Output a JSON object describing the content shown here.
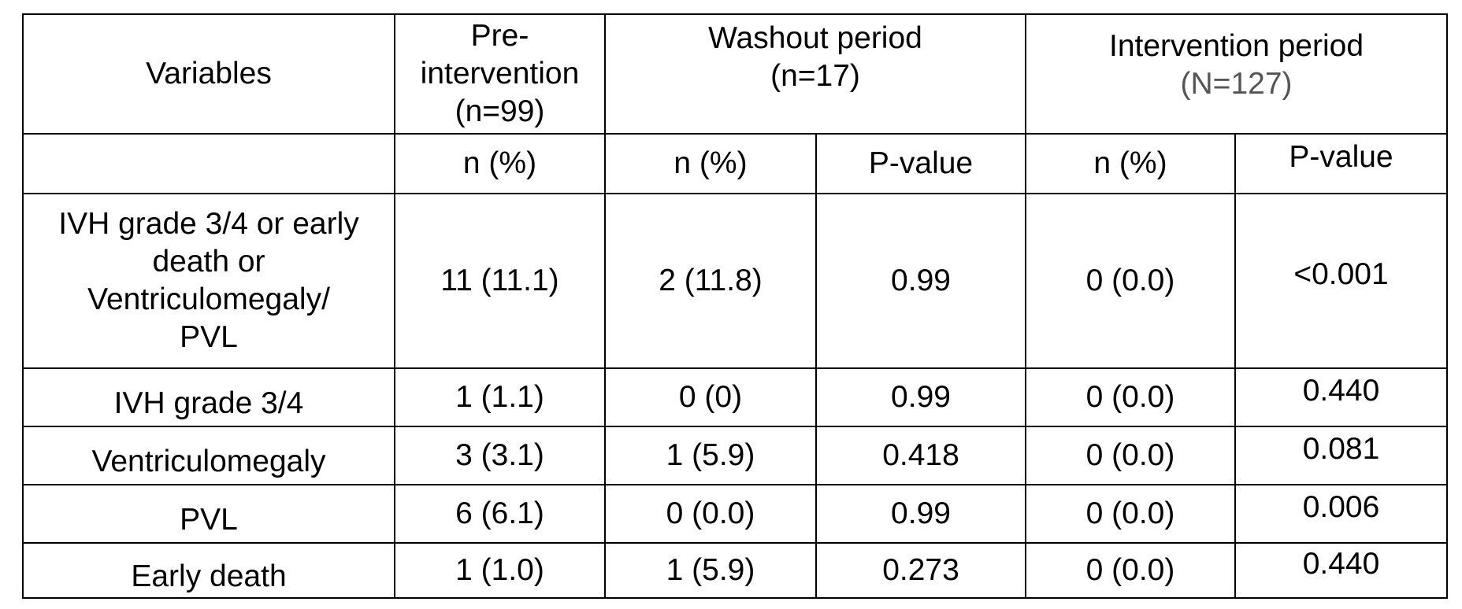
{
  "table": {
    "header": {
      "variables": "Variables",
      "pre_intervention": [
        "Pre-",
        "intervention",
        "(n=99)"
      ],
      "washout": [
        "Washout period",
        "(n=17)"
      ],
      "intervention": [
        "Intervention period",
        "(N=127)"
      ]
    },
    "subheader": {
      "pre_n": "n (%)",
      "washout_n": "n (%)",
      "washout_p": "P-value",
      "intervention_n": "n (%)",
      "intervention_p": "P-value"
    },
    "rows": [
      {
        "variable": [
          "IVH grade 3/4 or early",
          "death or",
          "Ventriculomegaly/",
          "PVL"
        ],
        "pre": "11 (11.1)",
        "washout_n": "2 (11.8)",
        "washout_p": "0.99",
        "intervention_n": "0 (0.0)",
        "intervention_p": "<0.001"
      },
      {
        "variable": "IVH grade 3/4",
        "pre": "1 (1.1)",
        "washout_n": "0 (0)",
        "washout_p": "0.99",
        "intervention_n": "0 (0.0)",
        "intervention_p": "0.440"
      },
      {
        "variable": "Ventriculomegaly",
        "pre": "3 (3.1)",
        "washout_n": "1 (5.9)",
        "washout_p": "0.418",
        "intervention_n": "0 (0.0)",
        "intervention_p": "0.081"
      },
      {
        "variable": "PVL",
        "pre": "6 (6.1)",
        "washout_n": "0 (0.0)",
        "washout_p": "0.99",
        "intervention_n": "0 (0.0)",
        "intervention_p": "0.006"
      },
      {
        "variable": "Early death",
        "pre": "1 (1.0)",
        "washout_n": "1 (5.9)",
        "washout_p": "0.273",
        "intervention_n": "0 (0.0)",
        "intervention_p": "0.440"
      }
    ]
  }
}
